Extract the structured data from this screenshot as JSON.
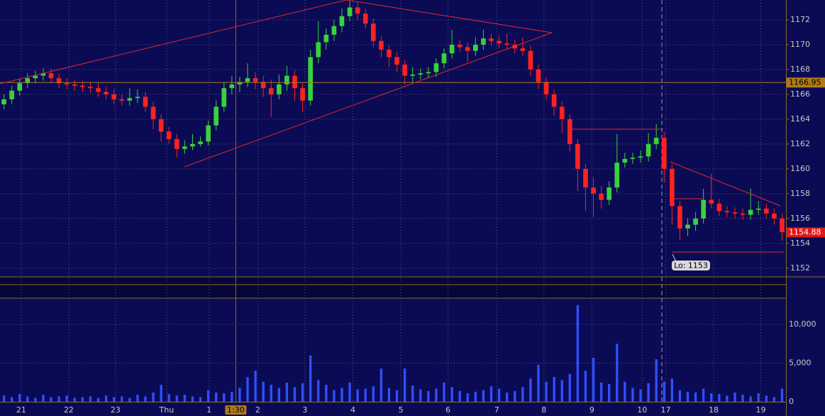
{
  "chart_data": [
    {
      "type": "candlestick",
      "up_color": "#3ad13a",
      "down_color": "#ff2222",
      "open": [
        1165.2,
        1165.6,
        1166.3,
        1166.9,
        1167.3,
        1167.5,
        1167.7,
        1167.3,
        1166.9,
        1166.8,
        1166.7,
        1166.6,
        1166.5,
        1166.2,
        1166.0,
        1165.6,
        1165.5,
        1165.7,
        1165.8,
        1165.0,
        1164.0,
        1163.0,
        1162.4,
        1161.6,
        1161.8,
        1162.0,
        1162.2,
        1163.5,
        1165.0,
        1166.5,
        1166.8,
        1167.0,
        1167.3,
        1167.0,
        1166.5,
        1166.0,
        1166.8,
        1167.5,
        1166.5,
        1165.5,
        1169.0,
        1170.2,
        1170.8,
        1171.5,
        1172.3,
        1173.0,
        1172.5,
        1171.7,
        1170.3,
        1169.6,
        1169.0,
        1168.4,
        1167.5,
        1167.6,
        1167.7,
        1167.8,
        1168.5,
        1169.3,
        1170.0,
        1169.8,
        1169.5,
        1170.0,
        1170.5,
        1170.3,
        1170.1,
        1170.0,
        1169.7,
        1169.5,
        1168.0,
        1167.0,
        1166.0,
        1165.0,
        1164.0,
        1162.0,
        1160.0,
        1158.5,
        1158.0,
        1157.5,
        1158.5,
        1160.5,
        1160.8,
        1160.9,
        1161.0,
        1162.0,
        1162.5,
        1160.0,
        1157.0,
        1155.2,
        1155.5,
        1156.0,
        1157.5,
        1157.2,
        1156.6,
        1156.5,
        1156.4,
        1156.3,
        1156.7,
        1156.8,
        1156.4,
        1156.0
      ],
      "high": [
        1166.0,
        1166.7,
        1167.3,
        1167.7,
        1167.9,
        1168.1,
        1168.1,
        1167.7,
        1167.3,
        1167.2,
        1167.1,
        1167.0,
        1166.9,
        1166.6,
        1166.4,
        1166.0,
        1166.5,
        1166.4,
        1166.2,
        1165.4,
        1164.4,
        1163.4,
        1162.8,
        1162.3,
        1162.8,
        1162.6,
        1163.9,
        1165.5,
        1167.0,
        1167.5,
        1167.4,
        1168.5,
        1167.8,
        1167.5,
        1167.2,
        1167.6,
        1168.3,
        1167.9,
        1166.9,
        1169.6,
        1171.9,
        1171.3,
        1172.0,
        1172.9,
        1173.5,
        1173.4,
        1172.9,
        1172.1,
        1170.7,
        1170.0,
        1169.4,
        1168.8,
        1168.2,
        1168.1,
        1168.2,
        1168.9,
        1169.7,
        1171.2,
        1170.4,
        1170.2,
        1170.6,
        1171.2,
        1170.9,
        1170.7,
        1170.9,
        1170.4,
        1170.6,
        1169.9,
        1168.4,
        1167.4,
        1166.4,
        1165.4,
        1164.4,
        1162.4,
        1160.4,
        1159.3,
        1158.6,
        1159.0,
        1162.8,
        1161.3,
        1161.3,
        1161.5,
        1162.9,
        1163.6,
        1163.0,
        1160.4,
        1157.4,
        1156.0,
        1156.5,
        1158.4,
        1159.6,
        1157.6,
        1157.0,
        1156.9,
        1156.8,
        1158.4,
        1157.4,
        1157.2,
        1156.8,
        1156.4
      ],
      "low": [
        1164.8,
        1165.2,
        1165.9,
        1166.5,
        1166.9,
        1167.1,
        1166.9,
        1166.5,
        1166.4,
        1166.3,
        1166.2,
        1166.1,
        1165.8,
        1165.6,
        1165.2,
        1165.1,
        1165.1,
        1165.3,
        1164.6,
        1163.2,
        1162.2,
        1162.0,
        1160.9,
        1161.2,
        1161.5,
        1161.8,
        1161.9,
        1163.1,
        1164.6,
        1166.0,
        1166.2,
        1166.6,
        1166.4,
        1165.8,
        1164.2,
        1165.6,
        1166.3,
        1165.5,
        1164.6,
        1165.1,
        1168.5,
        1169.6,
        1170.3,
        1171.0,
        1171.9,
        1172.0,
        1171.3,
        1169.8,
        1169.0,
        1168.2,
        1167.8,
        1166.8,
        1167.0,
        1167.2,
        1167.3,
        1167.4,
        1168.1,
        1168.9,
        1169.4,
        1168.6,
        1169.1,
        1169.6,
        1169.9,
        1169.7,
        1169.6,
        1169.3,
        1169.1,
        1167.5,
        1166.4,
        1165.6,
        1164.3,
        1162.9,
        1161.4,
        1158.2,
        1156.6,
        1156.1,
        1156.8,
        1157.1,
        1158.1,
        1160.1,
        1160.4,
        1160.5,
        1160.6,
        1161.6,
        1158.9,
        1155.5,
        1154.3,
        1154.6,
        1155.0,
        1155.6,
        1156.8,
        1156.2,
        1156.1,
        1156.0,
        1155.9,
        1155.9,
        1156.3,
        1156.0,
        1155.5,
        1154.2
      ],
      "close": [
        1165.6,
        1166.3,
        1166.9,
        1167.3,
        1167.5,
        1167.7,
        1167.3,
        1166.9,
        1166.8,
        1166.7,
        1166.6,
        1166.5,
        1166.2,
        1166.0,
        1165.6,
        1165.5,
        1165.7,
        1165.8,
        1165.0,
        1164.0,
        1163.0,
        1162.4,
        1161.6,
        1161.8,
        1162.0,
        1162.2,
        1163.5,
        1165.0,
        1166.5,
        1166.8,
        1167.0,
        1167.3,
        1167.0,
        1166.5,
        1166.0,
        1166.8,
        1167.5,
        1166.5,
        1165.5,
        1169.0,
        1170.2,
        1170.8,
        1171.5,
        1172.3,
        1173.0,
        1172.5,
        1171.7,
        1170.3,
        1169.6,
        1169.0,
        1168.4,
        1167.5,
        1167.6,
        1167.7,
        1167.8,
        1168.5,
        1169.3,
        1170.0,
        1169.8,
        1169.5,
        1170.0,
        1170.5,
        1170.3,
        1170.1,
        1170.0,
        1169.7,
        1169.5,
        1168.0,
        1167.0,
        1166.0,
        1165.0,
        1164.0,
        1162.0,
        1160.0,
        1158.5,
        1158.0,
        1157.5,
        1158.5,
        1160.5,
        1160.8,
        1160.9,
        1161.0,
        1162.0,
        1162.5,
        1160.0,
        1157.0,
        1155.2,
        1155.5,
        1156.0,
        1157.5,
        1157.2,
        1156.6,
        1156.5,
        1156.4,
        1156.3,
        1156.7,
        1156.8,
        1156.4,
        1156.0,
        1154.9
      ],
      "xlim": [
        0,
        100
      ],
      "ylim": [
        1151.3,
        1173.6
      ],
      "yticks": [
        1152,
        1154,
        1156,
        1158,
        1160,
        1162,
        1164,
        1166,
        1168,
        1170,
        1172
      ],
      "reference_price": 1166.95,
      "last_price": 1154.88,
      "low_annotation": "Lo: 1153"
    },
    {
      "type": "bar",
      "color": "#3050ff",
      "values": [
        800,
        600,
        1000,
        700,
        500,
        900,
        600,
        700,
        800,
        500,
        600,
        700,
        500,
        800,
        600,
        700,
        500,
        900,
        700,
        1200,
        2200,
        1000,
        800,
        900,
        700,
        600,
        1500,
        1200,
        1100,
        1300,
        1800,
        3200,
        4000,
        2600,
        2200,
        1800,
        2500,
        1900,
        2400,
        6000,
        2800,
        2200,
        1500,
        1800,
        2500,
        1600,
        1700,
        2000,
        4300,
        1800,
        1500,
        4300,
        2100,
        1600,
        1400,
        1700,
        2500,
        1900,
        1400,
        1100,
        1300,
        1500,
        2000,
        1700,
        1200,
        1400,
        1900,
        3000,
        4800,
        2600,
        3200,
        2800,
        3600,
        12500,
        4000,
        5700,
        2500,
        2300,
        7500,
        2600,
        1800,
        1600,
        2400,
        5500,
        2600,
        3000,
        1500,
        1300,
        1200,
        1700,
        1100,
        1000,
        800,
        1200,
        900,
        700,
        1100,
        800,
        600,
        1700
      ],
      "xlim": [
        0,
        100
      ],
      "ylim": [
        0,
        13400
      ],
      "yticks": [
        0,
        {
          "value": 5000,
          "label": "5,000"
        },
        {
          "value": 10000,
          "label": "10,000"
        }
      ],
      "xticks": [
        {
          "value": 2.7,
          "label": "21"
        },
        {
          "value": 8.75,
          "label": "22"
        },
        {
          "value": 14.7,
          "label": "23"
        },
        {
          "value": 21.2,
          "label": "Thu"
        },
        {
          "value": 26.6,
          "label": "1"
        },
        {
          "value": 32.8,
          "label": "2"
        },
        {
          "value": 38.8,
          "label": "3"
        },
        {
          "value": 44.9,
          "label": "4"
        },
        {
          "value": 51.0,
          "label": "5"
        },
        {
          "value": 57.0,
          "label": "6"
        },
        {
          "value": 63.2,
          "label": "7"
        },
        {
          "value": 69.2,
          "label": "8"
        },
        {
          "value": 75.3,
          "label": "9"
        },
        {
          "value": 81.7,
          "label": "10"
        },
        {
          "value": 84.7,
          "label": "17"
        },
        {
          "value": 90.8,
          "label": "18"
        },
        {
          "value": 96.8,
          "label": "19"
        }
      ],
      "cursor": {
        "value": 30.0,
        "label": "1:30"
      }
    }
  ]
}
